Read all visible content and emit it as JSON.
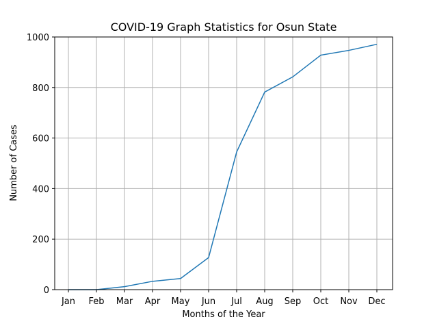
{
  "chart_data": {
    "type": "line",
    "title": "COVID-19 Graph Statistics for Osun State",
    "xlabel": "Months of the Year",
    "ylabel": "Number of Cases",
    "categories": [
      "Jan",
      "Feb",
      "Mar",
      "Apr",
      "May",
      "Jun",
      "Jul",
      "Aug",
      "Sep",
      "Oct",
      "Nov",
      "Dec"
    ],
    "series": [
      {
        "values": [
          0,
          0,
          12,
          33,
          44,
          127,
          545,
          782,
          842,
          928,
          947,
          971
        ]
      }
    ],
    "ylim": [
      0,
      1000
    ],
    "yticks": [
      0,
      200,
      400,
      600,
      800,
      1000
    ],
    "grid": true,
    "line_color": "#1f77b4",
    "grid_color": "#b0b0b0"
  }
}
